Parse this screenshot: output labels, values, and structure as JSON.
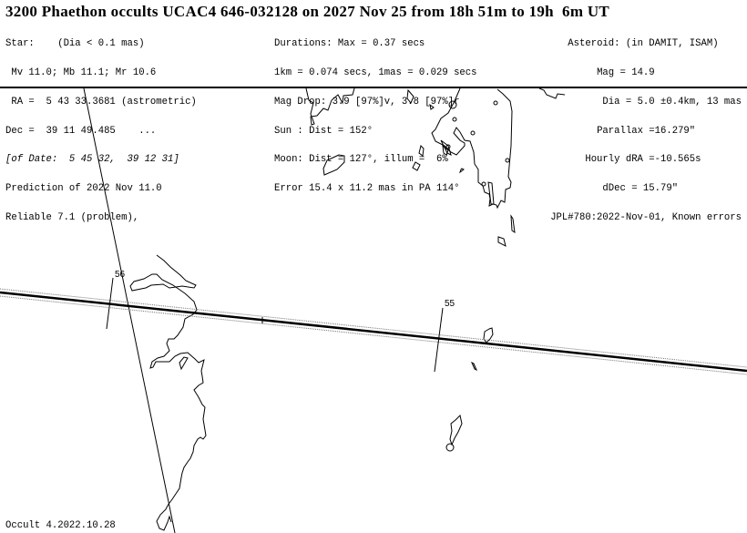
{
  "title": "3200 Phaethon occults UCAC4 646-032128 on 2027 Nov 25 from 18h 51m to 19h  6m UT",
  "star": [
    "Star:    (Dia < 0.1 mas)",
    " Mv 11.0; Mb 11.1; Mr 10.6",
    " RA =  5 43 33.3681 (astrometric)",
    "Dec =  39 11 49.485    ...",
    "[of Date:  5 45 32,  39 12 31]",
    "Prediction of 2022 Nov 11.0",
    "Reliable 7.1 (problem),"
  ],
  "event": [
    "Durations: Max = 0.37 secs",
    "1km = 0.074 secs, 1mas = 0.029 secs",
    "Mag Drop: 3.9 [97%]v, 3.8 [97%]r",
    "Sun : Dist = 152°",
    "Moon: Dist = 127°, illum =  6%",
    "Error 15.4 x 11.2 mas in PA 114°"
  ],
  "asteroid": [
    "Asteroid: (in DAMIT, ISAM)    ",
    "Mag = 14.9               ",
    "Dia = 5.0 ±0.4km, 13 mas",
    "Parallax =16.279\"        ",
    "Hourly dRA =-10.565s       ",
    "dDec = 15.79\"           ",
    "JPL#780:2022-Nov-01, Known errors"
  ],
  "map": {
    "time_markers": [
      "56",
      "55"
    ],
    "path_color": "#000000",
    "coast_color": "#000000"
  },
  "footer": "Occult 4.2022.10.28"
}
